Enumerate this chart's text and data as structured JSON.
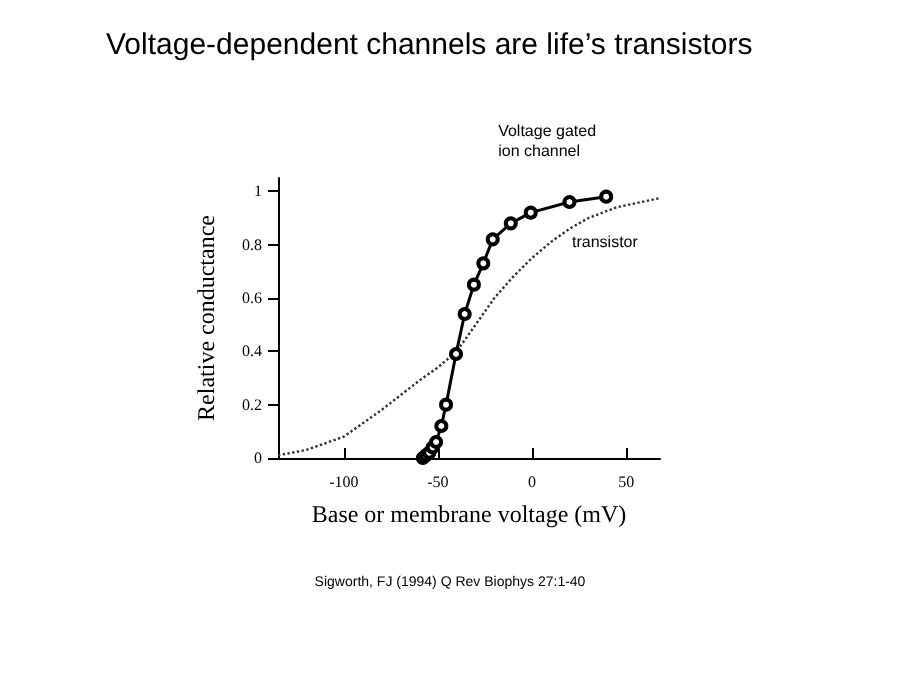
{
  "chart_data": {
    "type": "line",
    "title": "Voltage-dependent channels are life’s transistors",
    "xlabel": "Base or membrane voltage (mV)",
    "ylabel": "Relative conductance",
    "xlim": [
      -135,
      68
    ],
    "xticks": [
      -100,
      -50,
      0,
      50
    ],
    "ylim": [
      0,
      1.05
    ],
    "yticks": [
      0,
      0.2,
      0.4,
      0.6,
      0.8,
      1.0
    ],
    "grid": false,
    "series": [
      {
        "name": "Voltage gated\nion channel",
        "color": "#000000",
        "marker": "circle",
        "line_style": "solid",
        "x": [
          -58,
          -56.4,
          -54.6,
          -52.8,
          -51,
          -48.2,
          -45.7,
          -40.4,
          -35.8,
          -30.9,
          -25.9,
          -20.9,
          -11.3,
          -0.7,
          19.9,
          39.4
        ],
        "values": [
          0,
          0.01,
          0.02,
          0.04,
          0.06,
          0.12,
          0.2,
          0.39,
          0.54,
          0.65,
          0.73,
          0.82,
          0.88,
          0.92,
          0.96,
          0.98
        ]
      },
      {
        "name": "transistor",
        "color": "#333333",
        "marker": "none",
        "line_style": "dotted",
        "x": [
          -135,
          -120,
          -100,
          -80,
          -60,
          -50,
          -40,
          -30,
          -20,
          -10,
          0,
          10,
          20,
          30,
          45,
          68
        ],
        "values": [
          0.01,
          0.03,
          0.08,
          0.18,
          0.29,
          0.34,
          0.4,
          0.5,
          0.6,
          0.68,
          0.75,
          0.81,
          0.86,
          0.9,
          0.94,
          0.975
        ]
      }
    ],
    "annotations": [
      "Sigworth, FJ (1994) Q Rev Biophys 27:1-40"
    ]
  }
}
